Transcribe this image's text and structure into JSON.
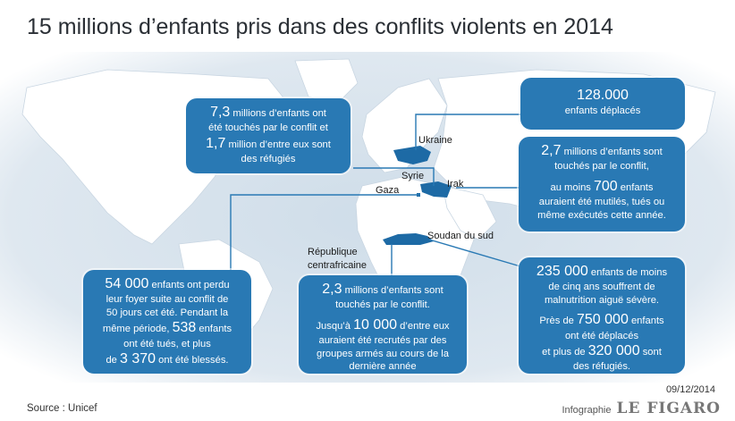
{
  "title": "15 millions d’enfants pris dans des conflits violents en 2014",
  "places": {
    "ukraine": "Ukraine",
    "syrie": "Syrie",
    "irak": "Irak",
    "gaza": "Gaza",
    "soudan": "Soudan du sud",
    "rca_line1": "République",
    "rca_line2": "centrafricaine"
  },
  "boxes": {
    "syria": {
      "n1": "7,3",
      "t1a": " millions d’enfants ont",
      "t1b": "été touchés par le conflit et",
      "n2": "1,7",
      "t2a": " million d’entre eux sont",
      "t2b": "des réfugiés"
    },
    "ukraine": {
      "n": "128.000",
      "t": "enfants déplacés"
    },
    "iraq": {
      "n1": "2,7",
      "t1a": " millions d’enfants sont",
      "t1b": "touchés par le conflit,",
      "t2a": "au moins ",
      "n2": "700",
      "t2b": " enfants",
      "t2c": "auraient été mutilés, tués ou",
      "t2d": "même exécutés cette année."
    },
    "gaza": {
      "n1": "54 000",
      "t1a": " enfants ont perdu",
      "t1b": "leur foyer suite au conflit de",
      "t1c": "50 jours cet été.  Pendant la",
      "t2a": "même période, ",
      "n2": "538",
      "t2b": " enfants",
      "t2c": "ont été tués, et plus",
      "t3a": "de ",
      "n3": "3 370",
      "t3b": " ont été blessés."
    },
    "rca": {
      "n1": "2,3",
      "t1a": " millions d’enfants sont",
      "t1b": "touchés par le conflit.",
      "t2a": "Jusqu’à ",
      "n2": "10 000",
      "t2b": " d’entre eux",
      "t2c": "auraient été recrutés par des",
      "t2d": "groupes armés au cours de la",
      "t2e": "dernière année"
    },
    "soudan": {
      "n1": "235 000",
      "t1a": " enfants de moins",
      "t1b": "de cinq ans souffrent de",
      "t1c": "malnutrition aiguë sévère.",
      "t2a": "Près de ",
      "n2": "750 000",
      "t2b": " enfants",
      "t2c": "ont été déplacés",
      "t3a": "et plus de ",
      "n3": "320 000",
      "t3b": " sont",
      "t3c": "des réfugiés."
    }
  },
  "footer": {
    "source": "Source : Unicef",
    "date": "09/12/2014",
    "credit_small": "Infographie",
    "credit_brand": "LE FIGARO"
  },
  "colors": {
    "box": "#2979b4",
    "highlight": "#1d6aa5",
    "land": "#ffffff",
    "sea": "#d8e4ee"
  }
}
